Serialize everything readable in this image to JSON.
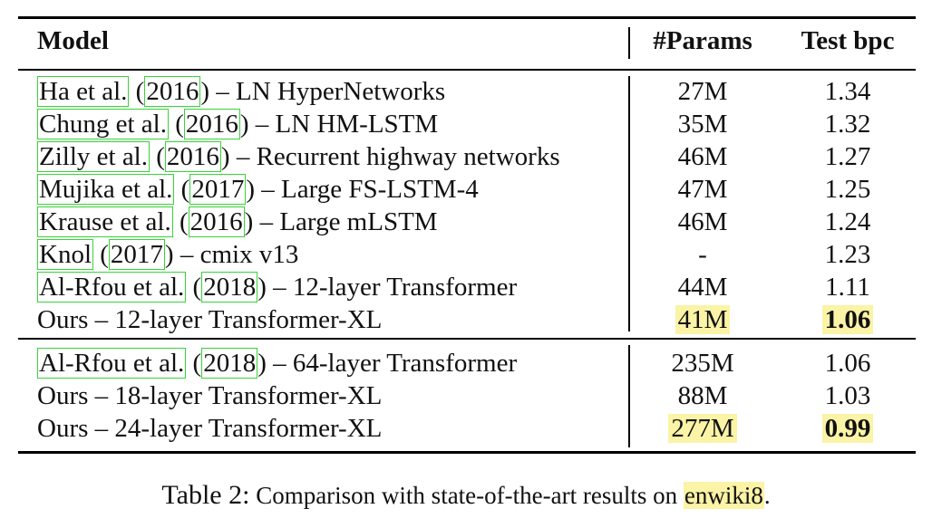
{
  "header": {
    "model": "Model",
    "params": "#Params",
    "bpc": "Test bpc"
  },
  "group1": [
    {
      "cite": "Ha et al.",
      "year": "2016",
      "desc": " – LN HyperNetworks",
      "params": "27M",
      "bpc": "1.34"
    },
    {
      "cite": "Chung et al.",
      "year": "2016",
      "desc": " – LN HM-LSTM",
      "params": "35M",
      "bpc": "1.32"
    },
    {
      "cite": "Zilly et al.",
      "year": "2016",
      "desc": " – Recurrent highway networks",
      "params": "46M",
      "bpc": "1.27"
    },
    {
      "cite": "Mujika et al.",
      "year": "2017",
      "desc": " – Large FS-LSTM-4",
      "params": "47M",
      "bpc": "1.25"
    },
    {
      "cite": "Krause et al.",
      "year": "2016",
      "desc": " – Large mLSTM",
      "params": "46M",
      "bpc": "1.24"
    },
    {
      "cite": "Knol",
      "year": "2017",
      "desc": " – cmix v13",
      "params": "-",
      "bpc": "1.23"
    },
    {
      "cite": "Al-Rfou et al.",
      "year": "2018",
      "desc": " – 12-layer Transformer",
      "params": "44M",
      "bpc": "1.11"
    },
    {
      "model": "Ours – 12-layer Transformer-XL",
      "params": "41M",
      "bpc": "1.06",
      "highlight": true
    }
  ],
  "group2": [
    {
      "cite": "Al-Rfou et al.",
      "year": "2018",
      "desc": " – 64-layer Transformer",
      "params": "235M",
      "bpc": "1.06"
    },
    {
      "model": "Ours – 18-layer Transformer-XL",
      "params": "88M",
      "bpc": "1.03"
    },
    {
      "model": "Ours – 24-layer Transformer-XL",
      "params": "277M",
      "bpc": "0.99",
      "highlight": true
    }
  ],
  "caption": {
    "label": "Table 2:",
    "text": " Comparison with state-of-the-art results on ",
    "dataset": "enwiki8",
    "end": "."
  }
}
